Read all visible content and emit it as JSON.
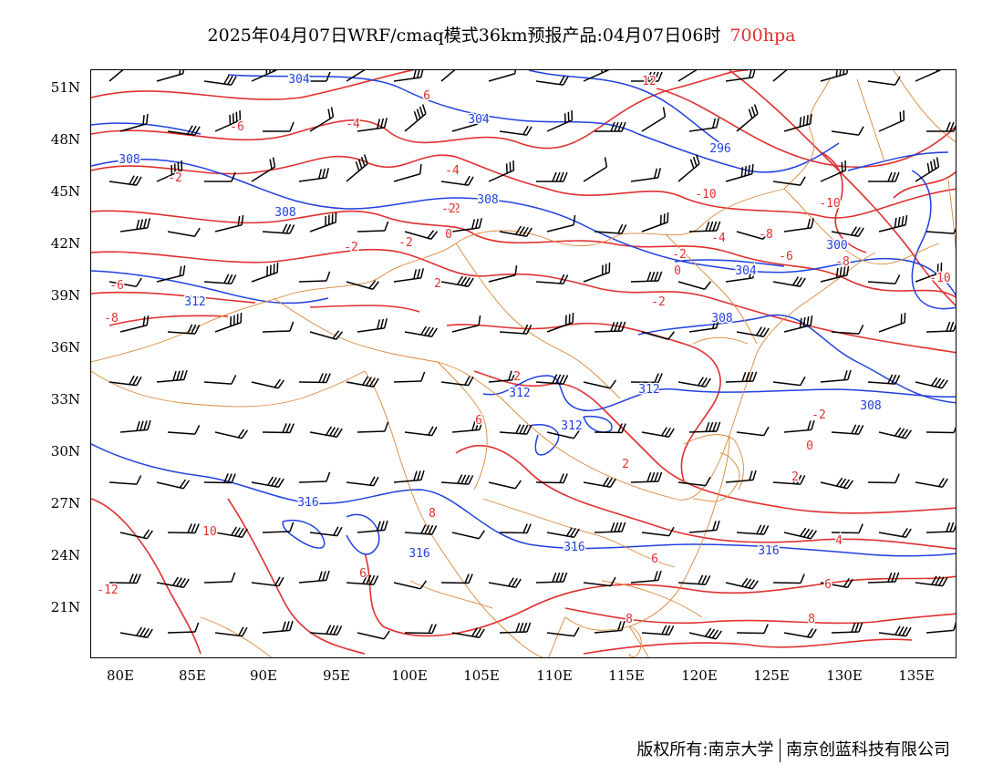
{
  "title": {
    "main": "2025年04月07日WRF/cmaq模式36km预报产品:04月07日06时",
    "level": "700hpa",
    "level_color": "#e03030"
  },
  "axes": {
    "lat_labels": [
      "51N",
      "48N",
      "45N",
      "42N",
      "39N",
      "36N",
      "33N",
      "30N",
      "27N",
      "24N",
      "21N"
    ],
    "lon_labels": [
      "80E",
      "85E",
      "90E",
      "95E",
      "100E",
      "105E",
      "110E",
      "115E",
      "120E",
      "125E",
      "130E",
      "135E"
    ]
  },
  "colors": {
    "temperature_contour": "#e03030",
    "height_contour": "#2040e0",
    "border": "#d9883a",
    "wind_barb": "#000000"
  },
  "labels": {
    "height": [
      {
        "text": "304",
        "key": "h304a"
      },
      {
        "text": "304",
        "key": "h304b"
      },
      {
        "text": "296",
        "key": "h296"
      },
      {
        "text": "308",
        "key": "h308a"
      },
      {
        "text": "308",
        "key": "h308b"
      },
      {
        "text": "308",
        "key": "h308c"
      },
      {
        "text": "300",
        "key": "h300"
      },
      {
        "text": "304",
        "key": "h304c"
      },
      {
        "text": "312",
        "key": "h312a"
      },
      {
        "text": "308",
        "key": "h308d"
      },
      {
        "text": "312",
        "key": "h312b"
      },
      {
        "text": "312",
        "key": "h312c"
      },
      {
        "text": "312",
        "key": "h312d"
      },
      {
        "text": "308",
        "key": "h308e"
      },
      {
        "text": "316",
        "key": "h316a"
      },
      {
        "text": "316",
        "key": "h316b"
      },
      {
        "text": "316",
        "key": "h316c"
      },
      {
        "text": "316",
        "key": "h316d"
      }
    ],
    "temperature": [
      {
        "text": "6",
        "key": "t6a"
      },
      {
        "text": "12",
        "key": "t12a"
      },
      {
        "text": "-6",
        "key": "tm6a"
      },
      {
        "text": "-4",
        "key": "tm4a"
      },
      {
        "text": "-2",
        "key": "tm2a"
      },
      {
        "text": "-4",
        "key": "tm4b"
      },
      {
        "text": "-2",
        "key": "tm2b"
      },
      {
        "text": "-10",
        "key": "tm10a"
      },
      {
        "text": "-10",
        "key": "tm10b"
      },
      {
        "text": "-2",
        "key": "tm2c"
      },
      {
        "text": "-2",
        "key": "tm2d"
      },
      {
        "text": "-2",
        "key": "tm2e"
      },
      {
        "text": "0",
        "key": "t0a"
      },
      {
        "text": "-4",
        "key": "tm4c"
      },
      {
        "text": "-8",
        "key": "tm8a"
      },
      {
        "text": "-6",
        "key": "tm6b"
      },
      {
        "text": "-8",
        "key": "tm8b"
      },
      {
        "text": "-10",
        "key": "tm10c"
      },
      {
        "text": "-2",
        "key": "tm2f"
      },
      {
        "text": "0",
        "key": "t0b"
      },
      {
        "text": "2",
        "key": "t2a"
      },
      {
        "text": "-2",
        "key": "tm2g"
      },
      {
        "text": "-6",
        "key": "tm6c"
      },
      {
        "text": "-8",
        "key": "tm8c"
      },
      {
        "text": "2",
        "key": "t2b"
      },
      {
        "text": "6",
        "key": "t6b"
      },
      {
        "text": "-2",
        "key": "tm2h"
      },
      {
        "text": "0",
        "key": "t0c"
      },
      {
        "text": "2",
        "key": "t2c"
      },
      {
        "text": "2",
        "key": "t2d"
      },
      {
        "text": "10",
        "key": "t10a"
      },
      {
        "text": "8",
        "key": "t8a"
      },
      {
        "text": "6",
        "key": "t6c"
      },
      {
        "text": "-12",
        "key": "tm12a"
      },
      {
        "text": "4",
        "key": "t4a"
      },
      {
        "text": "6",
        "key": "t6d"
      },
      {
        "text": "6",
        "key": "t6e"
      },
      {
        "text": "8",
        "key": "t8b"
      },
      {
        "text": "8",
        "key": "t8c"
      }
    ]
  },
  "footer": {
    "left": "版权所有:南京大学",
    "right": "南京创蓝科技有限公司"
  }
}
